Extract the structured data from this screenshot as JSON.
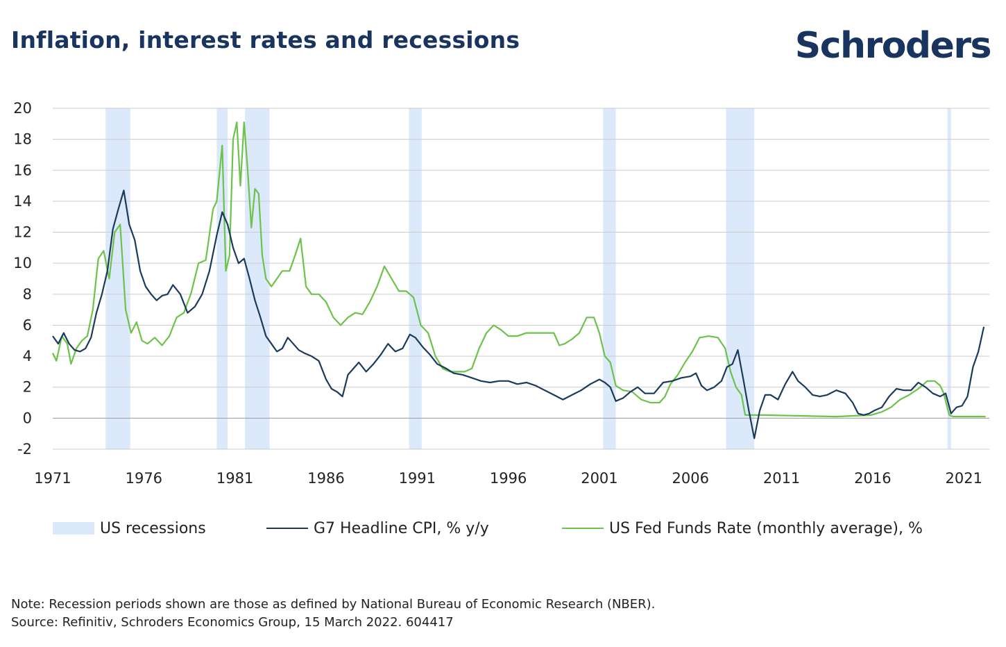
{
  "header": {
    "title": "Inflation, interest rates and recessions",
    "brand": "Schroders"
  },
  "notes": {
    "note": "Note: Recession periods shown are those as defined by National Bureau of Economic Research (NBER).",
    "source": "Source: Refinitiv, Schroders Economics Group, 15 March 2022. 604417"
  },
  "colors": {
    "cpi": "#1a3a5c",
    "fed": "#6cc24a",
    "recession": "#dce9fb",
    "grid": "#cccccc",
    "title": "#1a3460"
  },
  "chart_data": {
    "type": "line",
    "title": "Inflation, interest rates and recessions",
    "xlabel": "",
    "ylabel": "",
    "xlim": [
      1971,
      2022.4
    ],
    "ylim": [
      -2,
      20
    ],
    "y_ticks": [
      "20",
      "18",
      "16",
      "14",
      "12",
      "10",
      "8",
      "6",
      "4",
      "2",
      "0",
      "-2"
    ],
    "x_ticks": [
      "1971",
      "1976",
      "1981",
      "1986",
      "1991",
      "1996",
      "2001",
      "2006",
      "2011",
      "2016",
      "2021"
    ],
    "grid": true,
    "legend_position": "bottom",
    "legend": {
      "recessions": "US recessions",
      "cpi": "G7 Headline CPI, % y/y",
      "fed": "US Fed Funds Rate (monthly average), %"
    },
    "recessions": [
      [
        1973.9,
        1975.25
      ],
      [
        1980.0,
        1980.6
      ],
      [
        1981.55,
        1982.9
      ],
      [
        1990.55,
        1991.25
      ],
      [
        2001.2,
        2001.9
      ],
      [
        2007.95,
        2009.5
      ],
      [
        2020.1,
        2020.3
      ]
    ],
    "series": [
      {
        "name": "G7 Headline CPI, % y/y",
        "x": [
          1971.0,
          1971.3,
          1971.6,
          1971.9,
          1972.2,
          1972.5,
          1972.8,
          1973.1,
          1973.4,
          1973.7,
          1974.0,
          1974.3,
          1974.6,
          1974.9,
          1975.2,
          1975.5,
          1975.8,
          1976.1,
          1976.4,
          1976.7,
          1977.0,
          1977.3,
          1977.6,
          1978.0,
          1978.4,
          1978.8,
          1979.2,
          1979.6,
          1980.0,
          1980.3,
          1980.6,
          1980.9,
          1981.2,
          1981.5,
          1981.8,
          1982.1,
          1982.4,
          1982.7,
          1983.0,
          1983.3,
          1983.6,
          1983.9,
          1984.2,
          1984.5,
          1984.8,
          1985.2,
          1985.6,
          1986.0,
          1986.3,
          1986.6,
          1986.9,
          1987.2,
          1987.5,
          1987.8,
          1988.2,
          1988.6,
          1989.0,
          1989.4,
          1989.8,
          1990.2,
          1990.6,
          1990.9,
          1991.3,
          1991.7,
          1992.1,
          1992.6,
          1993.0,
          1993.5,
          1994.0,
          1994.5,
          1995.0,
          1995.5,
          1996.0,
          1996.5,
          1997.0,
          1997.5,
          1998.0,
          1998.5,
          1999.0,
          1999.5,
          2000.0,
          2000.5,
          2001.0,
          2001.3,
          2001.6,
          2001.9,
          2002.3,
          2002.7,
          2003.1,
          2003.5,
          2004.0,
          2004.5,
          2005.0,
          2005.5,
          2006.0,
          2006.3,
          2006.6,
          2006.9,
          2007.3,
          2007.7,
          2008.0,
          2008.3,
          2008.6,
          2008.9,
          2009.2,
          2009.5,
          2009.8,
          2010.1,
          2010.4,
          2010.8,
          2011.2,
          2011.6,
          2011.9,
          2012.3,
          2012.7,
          2013.1,
          2013.5,
          2014.0,
          2014.5,
          2014.9,
          2015.2,
          2015.5,
          2015.8,
          2016.1,
          2016.5,
          2016.9,
          2017.3,
          2017.7,
          2018.1,
          2018.5,
          2018.9,
          2019.3,
          2019.7,
          2020.0,
          2020.3,
          2020.6,
          2020.9,
          2021.2,
          2021.5,
          2021.8,
          2022.1
        ],
        "values": [
          5.3,
          4.8,
          5.5,
          4.8,
          4.4,
          4.3,
          4.5,
          5.2,
          6.8,
          8.0,
          9.5,
          12.2,
          13.5,
          14.7,
          12.5,
          11.5,
          9.5,
          8.5,
          8.0,
          7.6,
          7.9,
          8.0,
          8.6,
          8.0,
          6.8,
          7.2,
          8.0,
          9.5,
          11.8,
          13.3,
          12.5,
          11.0,
          10.0,
          10.3,
          9.0,
          7.6,
          6.5,
          5.3,
          4.8,
          4.3,
          4.5,
          5.2,
          4.8,
          4.4,
          4.2,
          4.0,
          3.7,
          2.5,
          1.9,
          1.7,
          1.4,
          2.8,
          3.2,
          3.6,
          3.0,
          3.5,
          4.1,
          4.8,
          4.3,
          4.5,
          5.4,
          5.2,
          4.6,
          4.1,
          3.5,
          3.2,
          2.9,
          2.8,
          2.6,
          2.4,
          2.3,
          2.4,
          2.4,
          2.2,
          2.3,
          2.1,
          1.8,
          1.5,
          1.2,
          1.5,
          1.8,
          2.2,
          2.5,
          2.3,
          2.0,
          1.1,
          1.3,
          1.7,
          2.0,
          1.6,
          1.6,
          2.3,
          2.4,
          2.6,
          2.7,
          2.9,
          2.1,
          1.8,
          2.0,
          2.4,
          3.3,
          3.5,
          4.4,
          2.5,
          0.5,
          -1.3,
          0.5,
          1.5,
          1.5,
          1.2,
          2.2,
          3.0,
          2.4,
          2.0,
          1.5,
          1.4,
          1.5,
          1.8,
          1.6,
          1.0,
          0.3,
          0.2,
          0.3,
          0.5,
          0.7,
          1.4,
          1.9,
          1.8,
          1.8,
          2.3,
          2.0,
          1.6,
          1.4,
          1.6,
          0.3,
          0.7,
          0.8,
          1.4,
          3.3,
          4.3,
          5.9
        ]
      },
      {
        "name": "US Fed Funds Rate (monthly average), %",
        "x": [
          1971.0,
          1971.2,
          1971.5,
          1971.8,
          1972.0,
          1972.3,
          1972.6,
          1972.9,
          1973.2,
          1973.5,
          1973.8,
          1974.1,
          1974.4,
          1974.7,
          1975.0,
          1975.3,
          1975.6,
          1975.9,
          1976.2,
          1976.6,
          1977.0,
          1977.4,
          1977.8,
          1978.2,
          1978.6,
          1979.0,
          1979.4,
          1979.8,
          1980.0,
          1980.3,
          1980.5,
          1980.7,
          1980.9,
          1981.1,
          1981.3,
          1981.5,
          1981.7,
          1981.9,
          1982.1,
          1982.3,
          1982.5,
          1982.7,
          1983.0,
          1983.3,
          1983.6,
          1984.0,
          1984.3,
          1984.6,
          1984.9,
          1985.2,
          1985.6,
          1986.0,
          1986.4,
          1986.8,
          1987.2,
          1987.6,
          1988.0,
          1988.4,
          1988.8,
          1989.2,
          1989.6,
          1990.0,
          1990.4,
          1990.8,
          1991.2,
          1991.6,
          1992.0,
          1992.4,
          1992.8,
          1993.2,
          1993.6,
          1994.0,
          1994.4,
          1994.8,
          1995.2,
          1995.6,
          1996.0,
          1996.5,
          1997.0,
          1997.5,
          1998.0,
          1998.5,
          1998.8,
          1999.1,
          1999.5,
          1999.9,
          2000.3,
          2000.7,
          2001.0,
          2001.3,
          2001.6,
          2001.9,
          2002.3,
          2002.8,
          2003.3,
          2003.8,
          2004.3,
          2004.6,
          2004.9,
          2005.3,
          2005.7,
          2006.1,
          2006.5,
          2007.0,
          2007.5,
          2007.9,
          2008.2,
          2008.5,
          2008.8,
          2009.0,
          2010.0,
          2012.0,
          2014.0,
          2015.9,
          2016.5,
          2017.0,
          2017.5,
          2018.0,
          2018.5,
          2019.0,
          2019.4,
          2019.7,
          2019.9,
          2020.2,
          2020.4,
          2022.2
        ],
        "values": [
          4.2,
          3.7,
          5.3,
          4.8,
          3.5,
          4.5,
          5.0,
          5.3,
          7.0,
          10.3,
          10.8,
          9.0,
          12.0,
          12.5,
          7.0,
          5.5,
          6.2,
          5.0,
          4.8,
          5.2,
          4.7,
          5.3,
          6.5,
          6.8,
          8.1,
          10.0,
          10.2,
          13.5,
          14.0,
          17.6,
          9.5,
          10.5,
          18.0,
          19.1,
          15.0,
          19.1,
          16.0,
          12.3,
          14.8,
          14.5,
          10.5,
          9.0,
          8.5,
          9.0,
          9.5,
          9.5,
          10.5,
          11.6,
          8.5,
          8.0,
          8.0,
          7.5,
          6.5,
          6.0,
          6.5,
          6.8,
          6.7,
          7.5,
          8.5,
          9.8,
          9.0,
          8.2,
          8.2,
          7.8,
          6.0,
          5.5,
          4.0,
          3.2,
          3.0,
          3.0,
          3.0,
          3.2,
          4.5,
          5.5,
          6.0,
          5.7,
          5.3,
          5.3,
          5.5,
          5.5,
          5.5,
          5.5,
          4.7,
          4.8,
          5.1,
          5.5,
          6.5,
          6.5,
          5.5,
          4.0,
          3.6,
          2.1,
          1.8,
          1.7,
          1.2,
          1.0,
          1.0,
          1.4,
          2.2,
          2.8,
          3.6,
          4.3,
          5.2,
          5.3,
          5.2,
          4.5,
          3.0,
          2.0,
          1.5,
          0.2,
          0.2,
          0.15,
          0.1,
          0.2,
          0.4,
          0.7,
          1.2,
          1.5,
          1.9,
          2.4,
          2.4,
          2.1,
          1.6,
          0.2,
          0.1,
          0.1
        ]
      }
    ]
  }
}
